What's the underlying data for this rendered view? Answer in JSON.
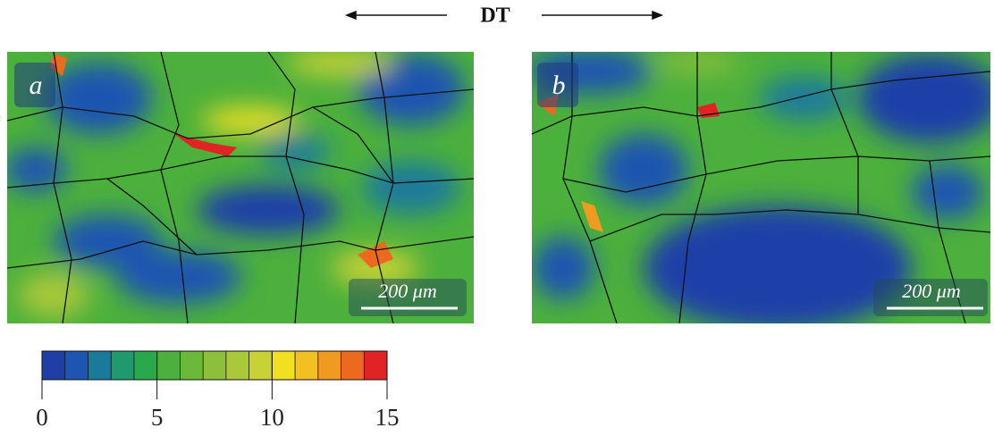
{
  "header": {
    "label": "DT"
  },
  "panels": [
    {
      "label": "a",
      "scale_bar": "200 μm"
    },
    {
      "label": "b",
      "scale_bar": "200 μm"
    }
  ],
  "colorbar": {
    "lim": [
      0,
      15
    ],
    "ticks": [
      0,
      5,
      10,
      15
    ],
    "colors": [
      "#1f3fa8",
      "#1e55b0",
      "#1b7a9a",
      "#1f9a6e",
      "#2aa84e",
      "#4cb03c",
      "#6cb83a",
      "#8cc03a",
      "#aac83a",
      "#c8d234",
      "#f0e020",
      "#f2c020",
      "#f09a20",
      "#ec6a20",
      "#e02424"
    ]
  }
}
